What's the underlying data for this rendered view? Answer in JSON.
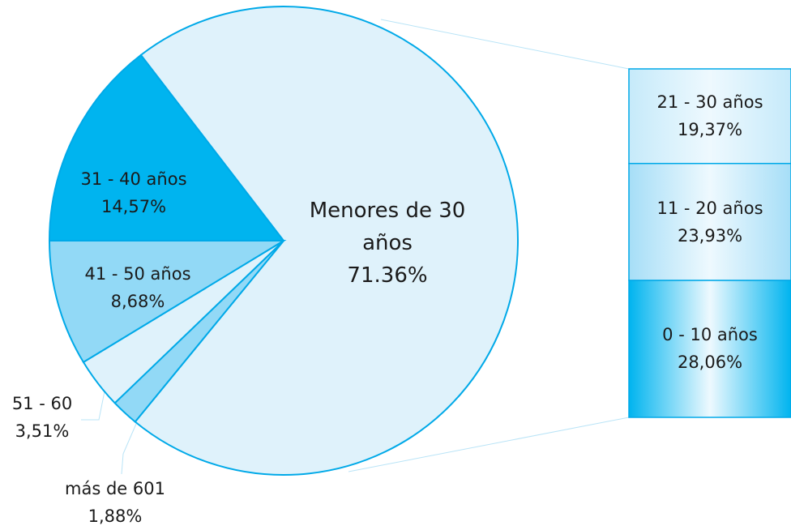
{
  "chart_data": {
    "type": "pie",
    "categories": [
      "31 - 40 años",
      "Menores de 30 años",
      "más de 601",
      "51 - 60",
      "41 - 50 años"
    ],
    "values": [
      14.57,
      71.36,
      1.88,
      3.51,
      8.68
    ],
    "value_labels": [
      "14,57%",
      "71.36%",
      "1,88%",
      "3,51%",
      "8,68%"
    ],
    "colors": [
      "#00b4ef",
      "#dff2fb",
      "#92d9f6",
      "#dff2fb",
      "#92d9f6"
    ],
    "breakdown": {
      "categories": [
        "0 - 10 años",
        "11 - 20 años",
        "21 - 30 años"
      ],
      "values": [
        28.06,
        23.93,
        19.37
      ],
      "value_labels": [
        "28,06%",
        "23,93%",
        "19,37%"
      ],
      "colors": [
        "#00b4ef",
        "#a6def7",
        "#c6eafa"
      ]
    }
  }
}
